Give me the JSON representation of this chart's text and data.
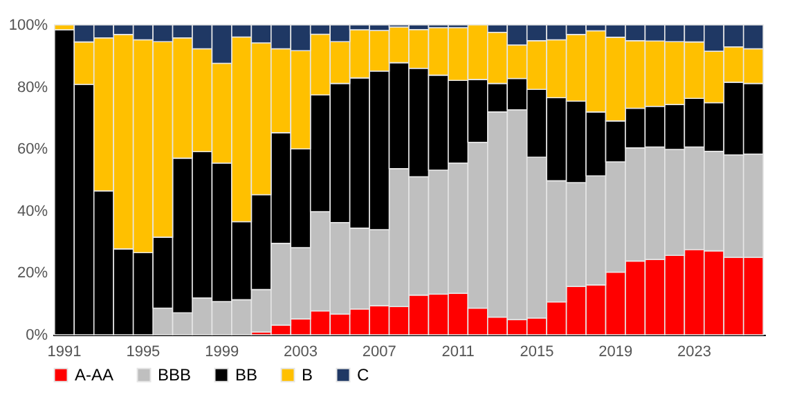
{
  "chart_data": {
    "type": "bar",
    "stacked": true,
    "legend": "bottom",
    "grid": false,
    "categories": [
      "1991",
      null,
      null,
      null,
      "1995",
      null,
      null,
      null,
      "1999",
      null,
      null,
      null,
      "2003",
      null,
      null,
      null,
      "2007",
      null,
      null,
      null,
      "2011",
      null,
      null,
      null,
      "2015",
      null,
      null,
      null,
      "2019",
      null,
      null,
      null,
      "2023",
      null,
      null,
      null
    ],
    "ylim": [
      0,
      100
    ],
    "yticks": [
      {
        "value": 0,
        "label": "0%"
      },
      {
        "value": 20,
        "label": "20%"
      },
      {
        "value": 40,
        "label": "40%"
      },
      {
        "value": 60,
        "label": "60%"
      },
      {
        "value": 80,
        "label": "80%"
      },
      {
        "value": 100,
        "label": "100%"
      }
    ],
    "series": [
      {
        "name": "A-AA",
        "color": "#ff0000",
        "values": [
          0,
          0,
          0,
          0,
          0,
          0,
          0,
          0,
          0,
          0,
          0.9,
          3.1,
          5.1,
          7.7,
          6.7,
          8.3,
          9.4,
          9.1,
          12.8,
          13.1,
          13.4,
          8.6,
          5.7,
          4.9,
          5.4,
          10.6,
          15.6,
          16.1,
          20.2,
          23.8,
          24.3,
          25.6,
          27.5,
          27.1,
          25.0,
          25.0
        ]
      },
      {
        "name": "BBB",
        "color": "#bfbfbf",
        "values": [
          0,
          0,
          0,
          0,
          0,
          8.6,
          7.1,
          11.9,
          10.7,
          11.3,
          13.7,
          26.4,
          23.0,
          32.0,
          29.5,
          26.1,
          24.5,
          44.5,
          38.2,
          40.0,
          42.0,
          53.5,
          66.2,
          67.7,
          51.9,
          39.1,
          33.5,
          35.2,
          35.6,
          36.5,
          36.3,
          34.2,
          33.1,
          32.1,
          33.0,
          33.3
        ]
      },
      {
        "name": "BB",
        "color": "#000000",
        "values": [
          98.4,
          80.8,
          46.4,
          27.7,
          26.5,
          22.9,
          49.9,
          47.2,
          44.7,
          25.2,
          30.6,
          35.7,
          31.9,
          37.7,
          44.9,
          48.5,
          51.2,
          34.2,
          35.0,
          30.7,
          26.7,
          20.3,
          9.2,
          10.1,
          21.9,
          26.8,
          26.3,
          20.6,
          13.2,
          12.8,
          13.1,
          14.5,
          15.7,
          15.7,
          23.5,
          22.8
        ]
      },
      {
        "name": "B",
        "color": "#ffc000",
        "values": [
          1.6,
          13.7,
          49.4,
          69.2,
          68.7,
          63.1,
          38.8,
          33.2,
          32.2,
          59.6,
          49.0,
          27.1,
          31.7,
          19.6,
          13.5,
          15.5,
          13.1,
          11.5,
          12.5,
          15.3,
          17.0,
          17.6,
          16.5,
          10.8,
          15.7,
          18.7,
          21.5,
          26.2,
          27.0,
          21.8,
          21.1,
          20.3,
          18.2,
          16.6,
          11.4,
          11.2
        ]
      },
      {
        "name": "C",
        "color": "#1f3864",
        "values": [
          0,
          5.5,
          4.2,
          3.1,
          4.8,
          5.4,
          4.2,
          7.7,
          12.4,
          3.9,
          5.8,
          7.7,
          8.3,
          3.0,
          5.4,
          1.6,
          1.8,
          0.7,
          1.5,
          0.9,
          0.9,
          0,
          2.4,
          6.5,
          5.1,
          4.8,
          3.1,
          1.9,
          4.0,
          5.1,
          5.2,
          5.4,
          5.5,
          8.5,
          7.1,
          7.7
        ]
      }
    ]
  }
}
